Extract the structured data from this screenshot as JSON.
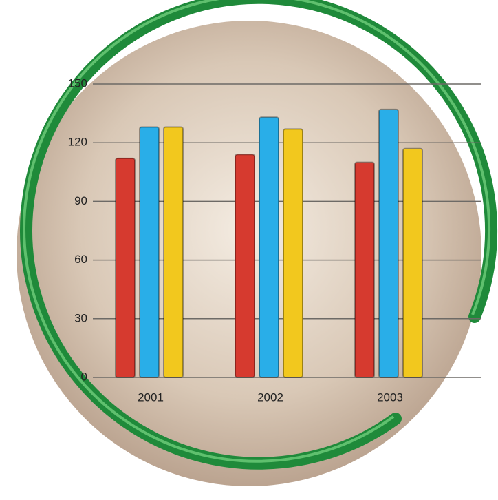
{
  "chart_data": {
    "type": "bar",
    "categories": [
      "2001",
      "2002",
      "2003"
    ],
    "series": [
      {
        "color": "#d63a2f",
        "values": [
          112,
          114,
          110
        ]
      },
      {
        "color": "#29aee8",
        "values": [
          128,
          133,
          137
        ]
      },
      {
        "color": "#f2c81e",
        "values": [
          128,
          127,
          117
        ]
      }
    ],
    "ylim": [
      0,
      150
    ],
    "yticks": [
      0,
      30,
      60,
      90,
      120,
      150
    ],
    "grid": true
  }
}
